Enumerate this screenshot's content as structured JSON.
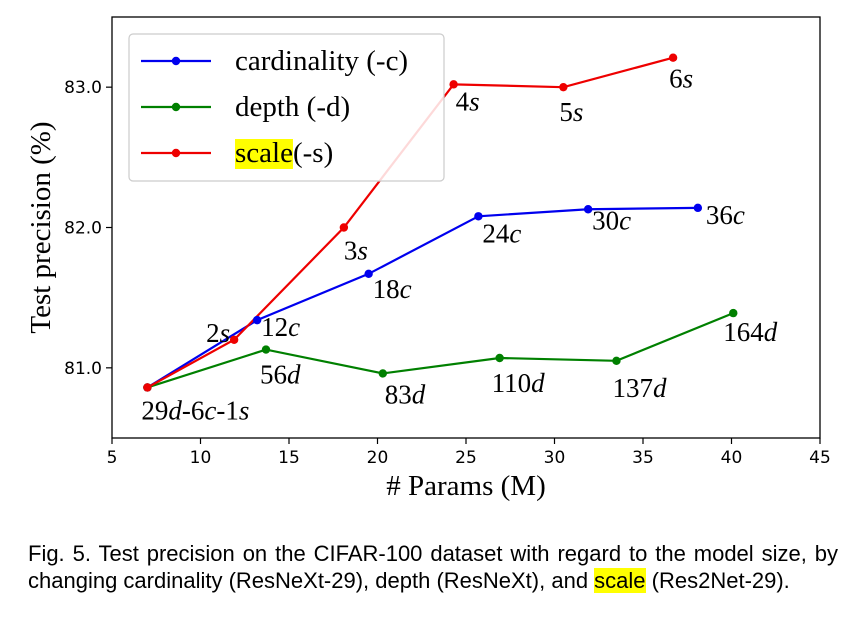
{
  "chart_data": {
    "type": "line",
    "xlabel": "# Params (M)",
    "ylabel": "Test precision (%)",
    "xlim": [
      5,
      45
    ],
    "ylim": [
      80.5,
      83.5
    ],
    "xticks": [
      5,
      10,
      15,
      20,
      25,
      30,
      35,
      40,
      45
    ],
    "yticks": [
      81.0,
      82.0,
      83.0
    ],
    "ytick_labels": [
      "81.0",
      "82.0",
      "83.0"
    ],
    "grid": false,
    "legend_position": "top-left",
    "series": [
      {
        "name": "cardinality (-c)",
        "color": "#0000ee",
        "x": [
          7.0,
          13.2,
          19.5,
          25.7,
          31.9,
          38.1
        ],
        "y": [
          80.86,
          81.34,
          81.67,
          82.08,
          82.13,
          82.14
        ],
        "labels": [
          {
            "num": "",
            "var": ""
          },
          {
            "num": "12",
            "var": "c"
          },
          {
            "num": "18",
            "var": "c"
          },
          {
            "num": "24",
            "var": "c"
          },
          {
            "num": "30",
            "var": "c"
          },
          {
            "num": "36",
            "var": "c"
          }
        ]
      },
      {
        "name": "depth (-d)",
        "color": "#008000",
        "x": [
          7.0,
          13.7,
          20.3,
          26.9,
          33.5,
          40.1
        ],
        "y": [
          80.86,
          81.13,
          80.96,
          81.07,
          81.05,
          81.39
        ],
        "labels": [
          {
            "num": "",
            "var": ""
          },
          {
            "num": "56",
            "var": "d"
          },
          {
            "num": "83",
            "var": "d"
          },
          {
            "num": "110",
            "var": "d"
          },
          {
            "num": "137",
            "var": "d"
          },
          {
            "num": "164",
            "var": "d"
          }
        ]
      },
      {
        "name": "scale (-s)",
        "name_highlight": "scale",
        "name_rest": " (-s)",
        "color": "#ee0000",
        "x": [
          7.0,
          11.9,
          18.1,
          24.3,
          30.5,
          36.7
        ],
        "y": [
          80.86,
          81.2,
          82.0,
          83.02,
          83.0,
          83.21
        ],
        "labels": [
          {
            "num": "",
            "var": ""
          },
          {
            "num": "2",
            "var": "s"
          },
          {
            "num": "3",
            "var": "s"
          },
          {
            "num": "4",
            "var": "s"
          },
          {
            "num": "5",
            "var": "s"
          },
          {
            "num": "6",
            "var": "s"
          }
        ]
      }
    ],
    "start_label": {
      "parts": [
        "29",
        "d",
        "-6",
        "c",
        "-1",
        "s"
      ]
    }
  },
  "caption": {
    "prefix": "Fig. 5. Test precision on the CIFAR-100 dataset with regard to the model size, by changing cardinality (ResNeXt-29), depth (ResNeXt), and ",
    "highlight": "scale",
    "suffix": " (Res2Net-29)."
  }
}
